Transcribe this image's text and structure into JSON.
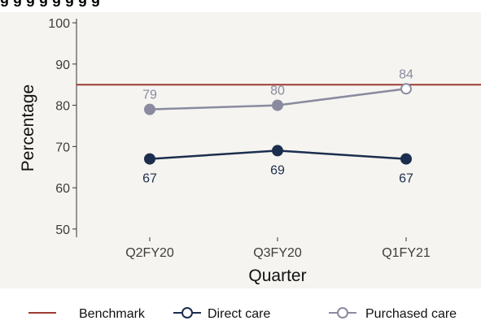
{
  "title_fragment": "g  g  g  g  g  g  g  g",
  "chart_data": {
    "type": "line",
    "categories": [
      "Q2FY20",
      "Q3FY20",
      "Q1FY21"
    ],
    "xlabel": "Quarter",
    "ylabel": "Percentage",
    "ylim": [
      48,
      101
    ],
    "yticks": [
      50,
      60,
      70,
      80,
      90,
      100
    ],
    "grid": false,
    "background": "#f5f4f0",
    "benchmark": {
      "name": "Benchmark",
      "value": 85,
      "color": "#9e3a33"
    },
    "series": [
      {
        "name": "Direct care",
        "values": [
          67,
          69,
          67
        ],
        "labels": [
          "67",
          "69",
          "67"
        ],
        "color": "#1c2e4e",
        "label_position": "below",
        "last_point_filled": true
      },
      {
        "name": "Purchased care",
        "values": [
          79,
          80,
          84
        ],
        "labels": [
          "79",
          "80",
          "84"
        ],
        "color": "#8a8aa0",
        "label_position": "above",
        "last_point_filled": false
      }
    ],
    "legend": {
      "placement": "bottom",
      "entries": [
        "Benchmark",
        "Direct care",
        "Purchased care"
      ]
    }
  }
}
